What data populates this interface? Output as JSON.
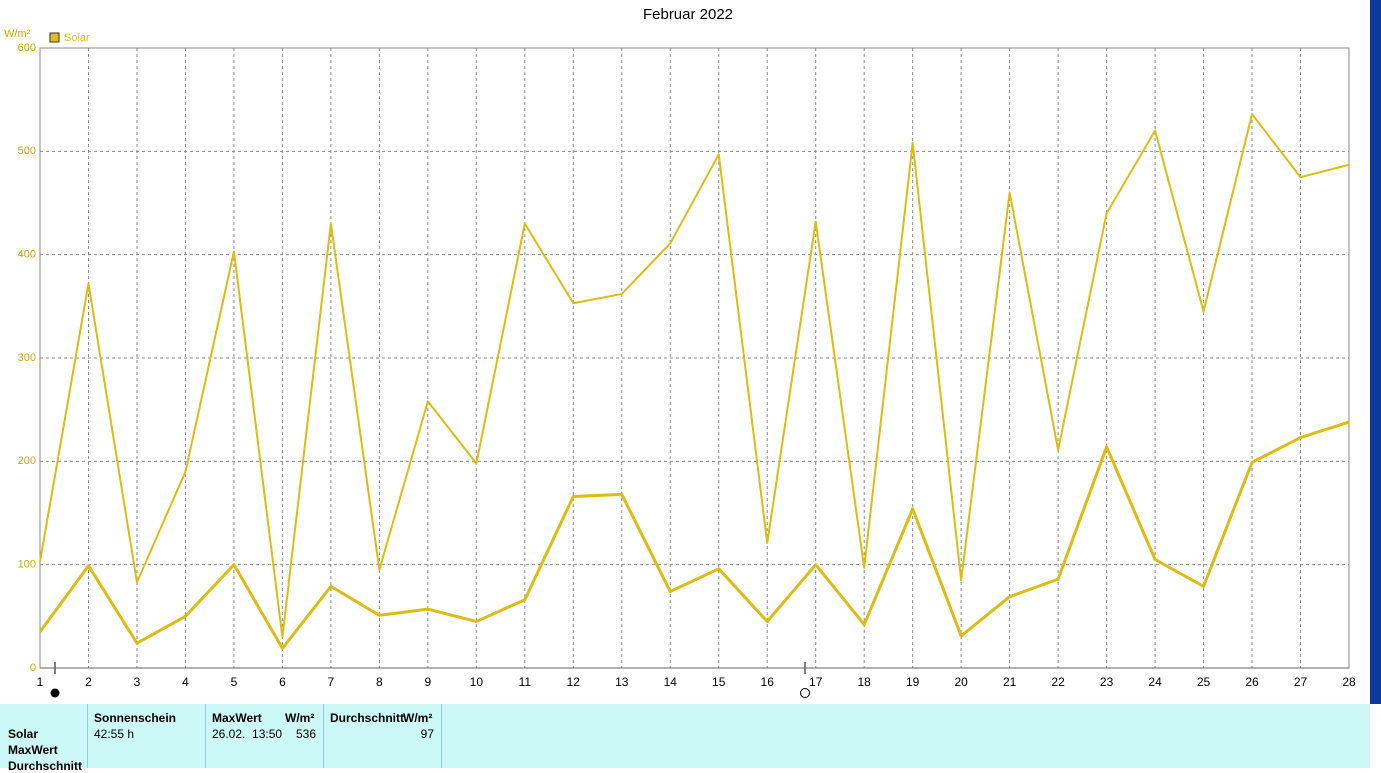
{
  "chart_data": {
    "type": "line",
    "title": "Februar 2022",
    "y_label": "W/m²",
    "legend": "Solar",
    "legend_color": "#e0c020",
    "x": [
      1,
      2,
      3,
      4,
      5,
      6,
      7,
      8,
      9,
      10,
      11,
      12,
      13,
      14,
      15,
      16,
      17,
      18,
      19,
      20,
      21,
      22,
      23,
      24,
      25,
      26,
      27,
      28
    ],
    "xlim": [
      1,
      28
    ],
    "xticks": [
      1,
      2,
      3,
      4,
      5,
      6,
      7,
      8,
      9,
      10,
      11,
      12,
      13,
      14,
      15,
      16,
      17,
      18,
      19,
      20,
      21,
      22,
      23,
      24,
      25,
      26,
      27,
      28
    ],
    "ylim": [
      0,
      600
    ],
    "yticks": [
      0,
      100,
      200,
      300,
      400,
      500,
      600
    ],
    "grid": true,
    "series": [
      {
        "color": "#dcbc14",
        "values": [
          103,
          372,
          83,
          190,
          403,
          30,
          430,
          95,
          258,
          198,
          430,
          353,
          362,
          411,
          497,
          121,
          432,
          97,
          508,
          85,
          460,
          211,
          440,
          520,
          345,
          536,
          475,
          487
        ]
      },
      {
        "color": "#dcbc14",
        "values": [
          35,
          99,
          24,
          50,
          100,
          19,
          79,
          51,
          57,
          45,
          66,
          166,
          168,
          74,
          96,
          45,
          100,
          42,
          154,
          31,
          69,
          86,
          214,
          105,
          79,
          199,
          223,
          238
        ]
      }
    ]
  },
  "table": {
    "row_labels": [
      "Solar",
      "MaxWert",
      "Durchschnitt"
    ],
    "sonnenschein": {
      "header": "Sonnenschein",
      "value": "42:55 h"
    },
    "maxwert": {
      "header": "MaxWert",
      "unit": "W/m²",
      "time": "26.02.  13:50",
      "value": 536
    },
    "durchschnitt": {
      "header": "Durchschnitt",
      "unit": "W/m²",
      "value": 97
    }
  }
}
